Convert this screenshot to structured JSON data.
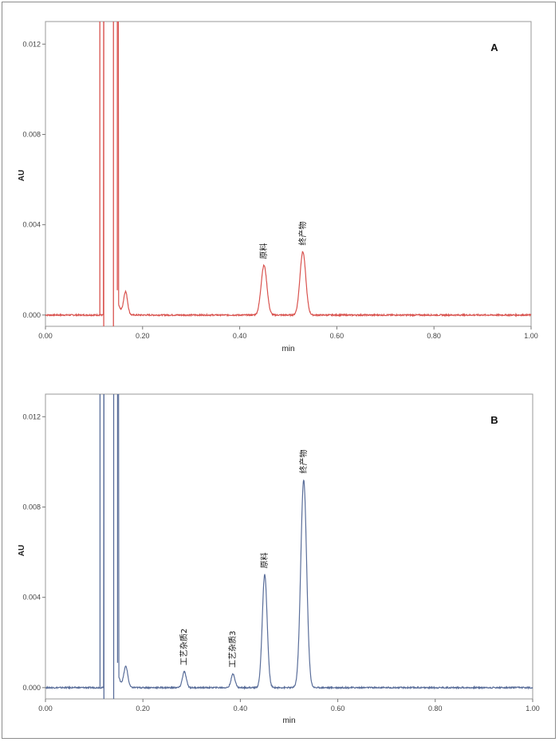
{
  "chart_data": [
    {
      "type": "line",
      "panel_label": "A",
      "xlabel": "min",
      "ylabel": "AU",
      "xlim": [
        0.0,
        1.0
      ],
      "ylim": [
        -0.0005,
        0.013
      ],
      "x_ticks": [
        "0.00",
        "0.20",
        "0.40",
        "0.60",
        "0.80",
        "1.00"
      ],
      "y_ticks": [
        "0.000",
        "0.004",
        "0.008",
        "0.012"
      ],
      "color": "#d9534f",
      "baseline": 0.0,
      "void_lines": [
        0.12,
        0.14
      ],
      "peaks": [
        {
          "label": "",
          "rt": 0.165,
          "height": 0.001,
          "width": 0.004
        },
        {
          "label": "原料",
          "rt": 0.45,
          "height": 0.0022,
          "width": 0.006
        },
        {
          "label": "终产物",
          "rt": 0.53,
          "height": 0.0028,
          "width": 0.006
        }
      ]
    },
    {
      "type": "line",
      "panel_label": "B",
      "xlabel": "min",
      "ylabel": "AU",
      "xlim": [
        0.0,
        1.0
      ],
      "ylim": [
        -0.0005,
        0.013
      ],
      "x_ticks": [
        "0.00",
        "0.20",
        "0.40",
        "0.60",
        "0.80",
        "1.00"
      ],
      "y_ticks": [
        "0.000",
        "0.004",
        "0.008",
        "0.012"
      ],
      "color": "#5a6e9a",
      "baseline": 0.0,
      "void_lines": [
        0.12,
        0.14
      ],
      "peaks": [
        {
          "label": "",
          "rt": 0.165,
          "height": 0.0009,
          "width": 0.004
        },
        {
          "label": "工艺杂质2",
          "rt": 0.285,
          "height": 0.0007,
          "width": 0.004
        },
        {
          "label": "工艺杂质3",
          "rt": 0.385,
          "height": 0.0006,
          "width": 0.004
        },
        {
          "label": "原料",
          "rt": 0.45,
          "height": 0.005,
          "width": 0.005
        },
        {
          "label": "终产物",
          "rt": 0.53,
          "height": 0.0092,
          "width": 0.006
        }
      ]
    }
  ]
}
